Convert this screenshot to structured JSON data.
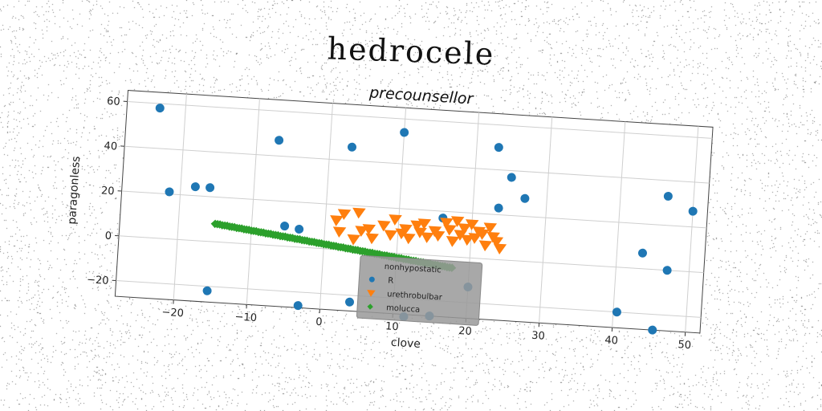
{
  "suptitle": "hedrocele",
  "chart_data": {
    "type": "scatter",
    "title": "precounsellor",
    "xlabel": "clove",
    "ylabel": "paragonless",
    "xlim": [
      -28,
      52
    ],
    "ylim": [
      -27,
      65
    ],
    "xticks": [
      -20,
      -10,
      0,
      10,
      20,
      30,
      40,
      50
    ],
    "yticks": [
      -20,
      0,
      20,
      40,
      60
    ],
    "grid": true,
    "legend": {
      "title": "nonhypostatic",
      "placement": "lower-center"
    },
    "series": [
      {
        "name": "R",
        "color": "#1f77b4",
        "marker": "circle",
        "x": [
          -23.5,
          -21.5,
          -18,
          -16,
          -15.5,
          -7,
          -5.5,
          -3.5,
          -3,
          3,
          4,
          10,
          11.5,
          15,
          16,
          20,
          23,
          23.5,
          25,
          27,
          40.5,
          43.5,
          45.5,
          46.5,
          47,
          50
        ],
        "y": [
          58,
          21,
          24,
          24,
          -22,
          47,
          9,
          8,
          -26,
          46,
          -23,
          54,
          -28,
          -27,
          17,
          -13,
          50,
          23,
          37,
          28,
          -20,
          7,
          -27,
          33,
          0,
          27
        ]
      },
      {
        "name": "urethrobulbar",
        "color": "#ff7f0e",
        "marker": "triangle-down",
        "x": [
          1.5,
          2,
          2.5,
          4,
          4.5,
          5,
          6,
          6.5,
          8,
          9,
          9.5,
          10.5,
          11,
          11.5,
          12.5,
          13,
          13.5,
          14,
          15,
          15.5,
          16.5,
          17,
          17.5,
          18,
          18.5,
          19,
          19.5,
          20,
          20.5,
          21,
          21.5,
          22,
          22.5,
          23,
          23.5,
          24
        ],
        "y": [
          13,
          8,
          16,
          5,
          17,
          9,
          10,
          6,
          12,
          8,
          15,
          9,
          11,
          7,
          13,
          10,
          14,
          8,
          11,
          9,
          15,
          12,
          7,
          16,
          10,
          13,
          8,
          15,
          9,
          12,
          11,
          6,
          14,
          10,
          8,
          5
        ]
      },
      {
        "name": "molucca",
        "color": "#2ca02c",
        "marker": "diamond",
        "x": [
          -15,
          -14,
          -13,
          -12,
          -11,
          -10,
          -9,
          -8,
          -7,
          -6,
          -5,
          -4,
          -3,
          -2,
          -1,
          0,
          1,
          2,
          3,
          4,
          5,
          6,
          7,
          8,
          9,
          10,
          11,
          12,
          13,
          14,
          15,
          16,
          17
        ],
        "y": [
          8,
          7.6,
          7.2,
          6.8,
          6.4,
          6,
          5.6,
          5.2,
          4.8,
          4.4,
          4,
          3.6,
          3.2,
          2.8,
          2.4,
          2,
          1.6,
          1.2,
          0.8,
          0.4,
          0,
          -0.4,
          -0.8,
          -1.2,
          -1.6,
          -2,
          -2.4,
          -2.8,
          -3.2,
          -3.6,
          -4,
          -4.4,
          -4.8
        ]
      }
    ]
  }
}
